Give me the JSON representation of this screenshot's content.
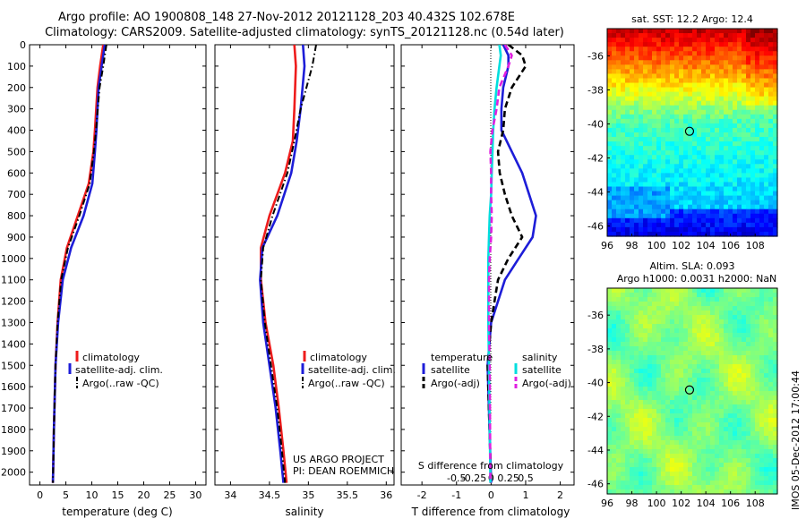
{
  "header": {
    "line1": "Argo profile: AO 1900808_148 27-Nov-2012 20121128_203 40.432S 102.678E",
    "line2": "Climatology: CARS2009. Satellite-adjusted climatology: synTS_20121128.nc (0.54d later)"
  },
  "colors": {
    "red": "#ee1c1c",
    "blue": "#1d1dd8",
    "black": "#000000",
    "cyan": "#00dede",
    "magenta": "#e020e0"
  },
  "depth_ticks": [
    0,
    100,
    200,
    300,
    400,
    500,
    600,
    700,
    800,
    900,
    1000,
    1100,
    1200,
    1300,
    1400,
    1500,
    1600,
    1700,
    1800,
    1900,
    2000
  ],
  "chart_data": [
    {
      "type": "line",
      "id": "temperature",
      "xlabel": "temperature (deg C)",
      "xlim": [
        -2,
        32
      ],
      "ylim": [
        0,
        2060
      ],
      "x_ticks": [
        "0",
        "5",
        "10",
        "15",
        "20",
        "25",
        "30"
      ],
      "x_tick_values": [
        0,
        5,
        10,
        15,
        20,
        25,
        30
      ],
      "legend": [
        "climatology",
        "satellite-adj. clim.",
        "Argo(..raw -QC)"
      ],
      "series": [
        {
          "name": "climatology",
          "color": "red",
          "style": "solid",
          "depth": [
            0,
            100,
            200,
            400,
            500,
            650,
            800,
            950,
            1100,
            1300,
            1500,
            1800,
            2050
          ],
          "values": [
            12.2,
            11.6,
            11.1,
            10.6,
            10.3,
            9.4,
            7.3,
            5.2,
            4.0,
            3.4,
            3.0,
            2.7,
            2.5
          ]
        },
        {
          "name": "satellite-adj. clim.",
          "color": "blue",
          "style": "solid",
          "depth": [
            0,
            100,
            200,
            400,
            500,
            650,
            800,
            950,
            1100,
            1300,
            1500,
            1800,
            2050
          ],
          "values": [
            12.5,
            11.9,
            11.3,
            10.9,
            10.6,
            10.1,
            8.4,
            6.0,
            4.4,
            3.5,
            3.0,
            2.7,
            2.5
          ]
        },
        {
          "name": "Argo(..raw -QC)",
          "color": "black",
          "style": "dashdot",
          "depth": [
            0,
            100,
            200,
            400,
            500,
            650,
            800,
            950,
            1100,
            1300,
            1500,
            1800,
            2050
          ],
          "values": [
            12.8,
            12.2,
            11.5,
            10.8,
            10.4,
            9.6,
            7.6,
            5.4,
            4.1,
            3.4,
            3.0,
            2.7,
            2.5
          ]
        }
      ]
    },
    {
      "type": "line",
      "id": "salinity",
      "xlabel": "salinity",
      "xlim": [
        33.8,
        36.1
      ],
      "ylim": [
        0,
        2060
      ],
      "x_ticks": [
        "34",
        "34.5",
        "35",
        "35.5",
        "36"
      ],
      "x_tick_values": [
        34,
        34.5,
        35,
        35.5,
        36
      ],
      "legend": [
        "climatology",
        "satellite-adj. clim.",
        "Argo(..raw -QC)"
      ],
      "series": [
        {
          "name": "climatology",
          "color": "red",
          "style": "solid",
          "depth": [
            0,
            100,
            300,
            450,
            600,
            800,
            950,
            1100,
            1300,
            1500,
            1700,
            1900,
            2050
          ],
          "values": [
            34.82,
            34.84,
            34.82,
            34.8,
            34.7,
            34.5,
            34.39,
            34.39,
            34.45,
            34.55,
            34.62,
            34.68,
            34.72
          ]
        },
        {
          "name": "satellite-adj. clim.",
          "color": "blue",
          "style": "solid",
          "depth": [
            0,
            100,
            300,
            450,
            600,
            800,
            950,
            1100,
            1300,
            1500,
            1700,
            1900,
            2050
          ],
          "values": [
            34.93,
            34.95,
            34.9,
            34.85,
            34.78,
            34.6,
            34.41,
            34.38,
            34.42,
            34.5,
            34.58,
            34.64,
            34.68
          ]
        },
        {
          "name": "Argo(..raw -QC)",
          "color": "black",
          "style": "dashdot",
          "depth": [
            0,
            100,
            300,
            450,
            600,
            800,
            950,
            1100,
            1300,
            1500,
            1700,
            1900,
            2050
          ],
          "values": [
            35.1,
            35.05,
            34.9,
            34.82,
            34.73,
            34.54,
            34.42,
            34.39,
            34.44,
            34.52,
            34.6,
            34.66,
            34.7
          ]
        }
      ],
      "annotation": [
        "US ARGO PROJECT",
        "PI: DEAN ROEMMICH"
      ]
    },
    {
      "type": "line",
      "id": "differences",
      "xlabel": "T difference from climatology",
      "xlabel_top": "S difference from climatology",
      "xlim": [
        -2.6,
        2.4
      ],
      "ylim": [
        0,
        2060
      ],
      "x_ticks": [
        "-2",
        "-1",
        "0",
        "1",
        "2"
      ],
      "x_tick_values": [
        -2,
        -1,
        0,
        1,
        2
      ],
      "s_ticks": [
        "-0.5",
        "-0.25",
        "0",
        "0.25",
        "0.5"
      ],
      "s_tick_values": [
        -0.5,
        -0.25,
        0,
        0.25,
        0.5
      ],
      "legend_temperature_title": "temperature",
      "legend_salinity_title": "salinity",
      "legend_temperature": [
        "satellite",
        "Argo(-adj)"
      ],
      "legend_salinity": [
        "satellite",
        "Argo(-adj)"
      ],
      "series": [
        {
          "name": "temperature satellite",
          "color": "blue",
          "style": "solid",
          "depth": [
            0,
            50,
            100,
            200,
            300,
            400,
            500,
            600,
            700,
            800,
            900,
            1000,
            1100,
            1200,
            1300,
            1500,
            2050
          ],
          "values": [
            0.35,
            0.5,
            0.5,
            0.35,
            0.3,
            0.3,
            0.6,
            0.9,
            1.1,
            1.3,
            1.2,
            0.8,
            0.4,
            0.2,
            0.0,
            -0.1,
            0.0
          ]
        },
        {
          "name": "temperature Argo(-adj)",
          "color": "black",
          "style": "dashed",
          "depth": [
            0,
            50,
            100,
            200,
            300,
            400,
            500,
            600,
            700,
            800,
            900,
            1000,
            1100,
            1200,
            1300,
            1500,
            2050
          ],
          "values": [
            0.5,
            0.9,
            1.0,
            0.6,
            0.4,
            0.35,
            0.2,
            0.25,
            0.4,
            0.6,
            0.9,
            0.5,
            0.2,
            0.1,
            0.0,
            -0.1,
            0.0
          ]
        },
        {
          "name": "salinity satellite",
          "color": "cyan",
          "style": "solid",
          "depth": [
            0,
            50,
            100,
            200,
            300,
            400,
            500,
            600,
            700,
            800,
            900,
            1000,
            1100,
            1200,
            1300,
            1500,
            2050
          ],
          "values": [
            0.12,
            0.14,
            0.12,
            0.08,
            0.05,
            0.03,
            0.02,
            0.01,
            0.0,
            -0.02,
            -0.03,
            -0.04,
            -0.04,
            -0.04,
            -0.04,
            -0.03,
            -0.01
          ]
        },
        {
          "name": "salinity Argo(-adj)",
          "color": "magenta",
          "style": "dashed",
          "depth": [
            0,
            50,
            100,
            200,
            300,
            400,
            500,
            600,
            700,
            800,
            900,
            1000,
            1100,
            1200,
            1300,
            1500,
            2050
          ],
          "values": [
            0.2,
            0.3,
            0.25,
            0.12,
            0.08,
            0.02,
            -0.01,
            0.0,
            0.0,
            0.01,
            0.0,
            -0.02,
            -0.03,
            -0.03,
            -0.03,
            -0.02,
            -0.01
          ]
        }
      ]
    },
    {
      "type": "heatmap",
      "id": "sst_map",
      "title": "sat. SST: 12.2 Argo: 12.4",
      "x_ticks": [
        "96",
        "98",
        "100",
        "102",
        "104",
        "106",
        "108"
      ],
      "x_tick_values": [
        96,
        98,
        100,
        102,
        104,
        106,
        108
      ],
      "y_ticks": [
        "-36",
        "-38",
        "-40",
        "-42",
        "-44",
        "-46"
      ],
      "y_tick_values": [
        -36,
        -38,
        -40,
        -42,
        -44,
        -46
      ],
      "xlim": [
        96,
        109.8
      ],
      "ylim": [
        -46.6,
        -34.4
      ],
      "marker": {
        "lon": 102.678,
        "lat": -40.432
      }
    },
    {
      "type": "heatmap",
      "id": "sla_map",
      "title": "Altim. SLA: 0.093",
      "title2": "Argo h1000: 0.0031 h2000: NaN",
      "x_ticks": [
        "96",
        "98",
        "100",
        "102",
        "104",
        "106",
        "108"
      ],
      "x_tick_values": [
        96,
        98,
        100,
        102,
        104,
        106,
        108
      ],
      "y_ticks": [
        "-36",
        "-38",
        "-40",
        "-42",
        "-44",
        "-46"
      ],
      "y_tick_values": [
        -36,
        -38,
        -40,
        -42,
        -44,
        -46
      ],
      "xlim": [
        96,
        109.8
      ],
      "ylim": [
        -46.6,
        -34.4
      ],
      "marker": {
        "lon": 102.678,
        "lat": -40.432
      }
    }
  ],
  "side_stamp": "IMOS 05-Dec-2012 17:00:44"
}
